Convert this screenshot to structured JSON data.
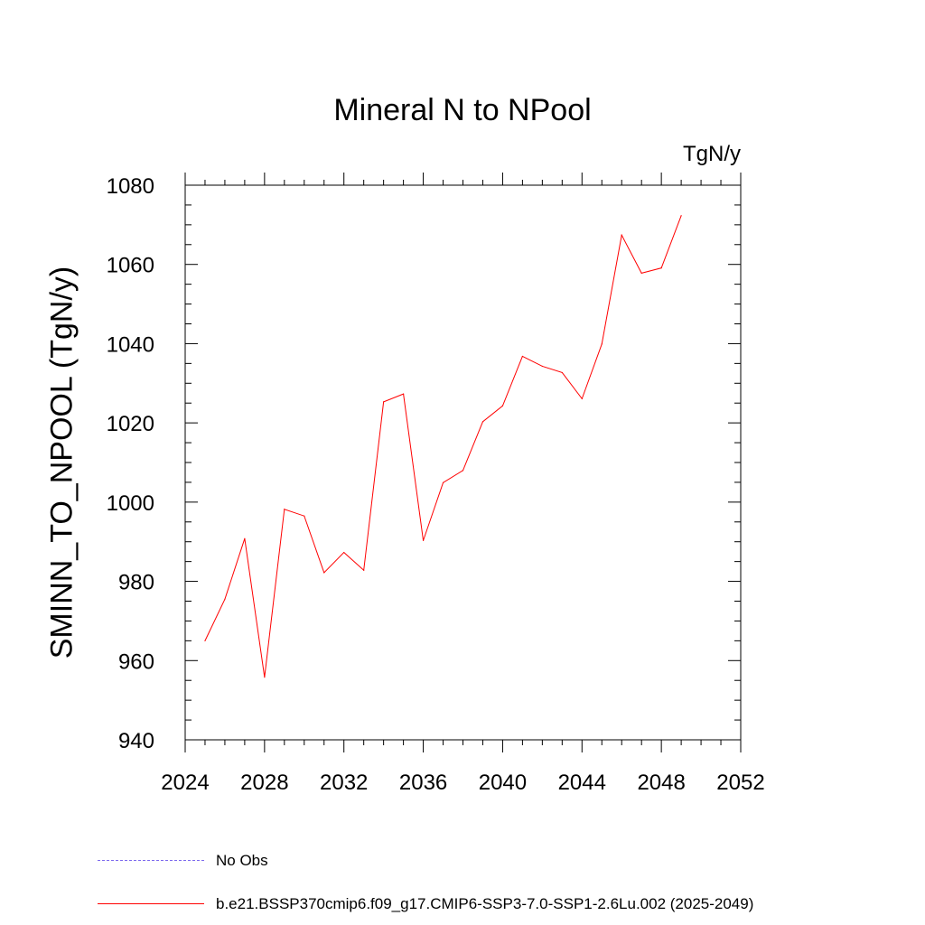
{
  "chart_data": {
    "type": "line",
    "title": "Mineral N to NPool",
    "units_label": "TgN/y",
    "xlabel": "",
    "ylabel": "SMINN_TO_NPOOL  (TgN/y)",
    "xlim": [
      2024,
      2052
    ],
    "ylim": [
      940,
      1080
    ],
    "x_ticks": [
      "2024",
      "2028",
      "2032",
      "2036",
      "2040",
      "2044",
      "2048",
      "2052"
    ],
    "y_ticks": [
      "940",
      "960",
      "980",
      "1000",
      "1020",
      "1040",
      "1060",
      "1080"
    ],
    "x_tick_values": [
      2024,
      2028,
      2032,
      2036,
      2040,
      2044,
      2048,
      2052
    ],
    "y_tick_values": [
      940,
      960,
      980,
      1000,
      1020,
      1040,
      1060,
      1080
    ],
    "grid": false,
    "series": [
      {
        "name": "b.e21.BSSP370cmip6.f09_g17.CMIP6-SSP3-7.0-SSP1-2.6Lu.002 (2025-2049)",
        "color": "#ff0000",
        "x": [
          2025,
          2026,
          2027,
          2028,
          2029,
          2030,
          2031,
          2032,
          2033,
          2034,
          2035,
          2036,
          2037,
          2038,
          2039,
          2040,
          2041,
          2042,
          2043,
          2044,
          2045,
          2046,
          2047,
          2048,
          2049
        ],
        "y": [
          965,
          975.5,
          990.8,
          955.8,
          998.2,
          996.5,
          982.2,
          987.3,
          982.8,
          1025.3,
          1027.3,
          990.3,
          1004.9,
          1008,
          1020.3,
          1024.3,
          1036.8,
          1034.3,
          1032.7,
          1026.1,
          1039.9,
          1067.4,
          1057.8,
          1059.1,
          1072.3
        ]
      }
    ],
    "legend": [
      {
        "label": "No Obs",
        "color": "#7b68ee",
        "style": "dashed"
      },
      {
        "label": "b.e21.BSSP370cmip6.f09_g17.CMIP6-SSP3-7.0-SSP1-2.6Lu.002 (2025-2049)",
        "color": "#ff0000",
        "style": "solid"
      }
    ],
    "legend_position": "bottom-left"
  }
}
